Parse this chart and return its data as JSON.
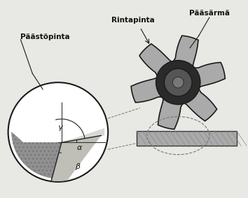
{
  "bg_color": "#e8e8e4",
  "fig_bg": "#e8e8e4",
  "labels": {
    "paastopinta": "Päästöpinta",
    "rintapinta": "Rintapinta",
    "paasarma": "Pääsärmä"
  },
  "angles": {
    "alpha_label": "α",
    "beta_label": "β",
    "gamma_label": "γ"
  },
  "colors": {
    "cutter_fill": "#909090",
    "cutter_dark": "#2a2a2a",
    "cutter_edge": "#1a1a1a",
    "workpiece": "#aaaaaa",
    "line_color": "#1a1a1a",
    "text_color": "#111111",
    "dashed_color": "#666666",
    "zoom_bg": "#ffffff",
    "wedge_dark": "#888880",
    "wedge_light": "#c8c8c0",
    "tooth_fill": "#909090"
  }
}
